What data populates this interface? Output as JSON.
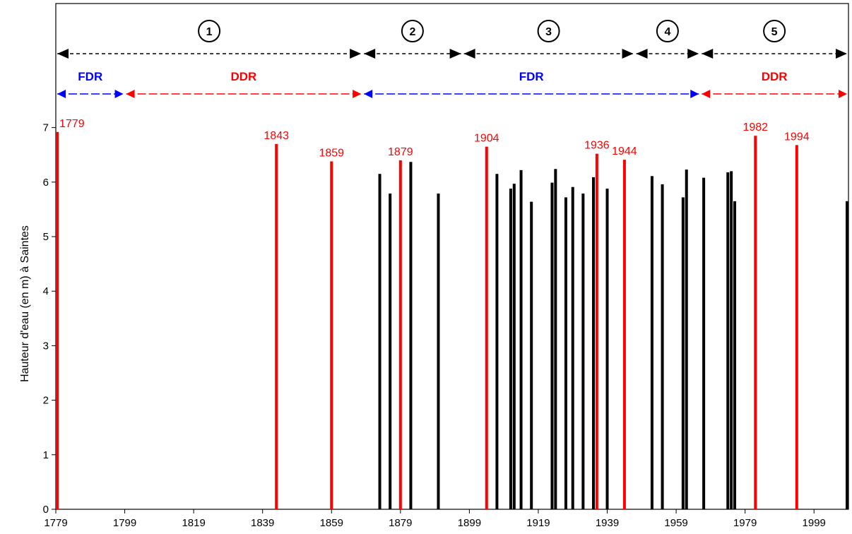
{
  "chart_data": {
    "type": "bar",
    "title": "",
    "xlabel": "",
    "ylabel": "Hauteur d'eau (en m) à Saintes",
    "xlim": [
      1779,
      2009
    ],
    "ylim": [
      0,
      7.6
    ],
    "x_ticks": [
      1779,
      1799,
      1819,
      1839,
      1859,
      1879,
      1899,
      1919,
      1939,
      1959,
      1979,
      1999
    ],
    "y_ticks": [
      0,
      1,
      2,
      3,
      4,
      5,
      6,
      7
    ],
    "grid": false,
    "series": [
      {
        "color": "#ff0000",
        "points": [
          {
            "x": 1779,
            "y": 6.92,
            "label": "1779"
          },
          {
            "x": 1843,
            "y": 6.7,
            "label": "1843"
          },
          {
            "x": 1859,
            "y": 6.38,
            "label": "1859"
          },
          {
            "x": 1879,
            "y": 6.4,
            "label": "1879"
          },
          {
            "x": 1904,
            "y": 6.65,
            "label": "1904"
          },
          {
            "x": 1936,
            "y": 6.52,
            "label": "1936"
          },
          {
            "x": 1944,
            "y": 6.41,
            "label": "1944"
          },
          {
            "x": 1982,
            "y": 6.85,
            "label": "1982"
          },
          {
            "x": 1994,
            "y": 6.68,
            "label": "1994"
          }
        ]
      },
      {
        "color": "#000000",
        "points": [
          {
            "x": 1873,
            "y": 6.15
          },
          {
            "x": 1876,
            "y": 5.79
          },
          {
            "x": 1882,
            "y": 6.37
          },
          {
            "x": 1890,
            "y": 5.79
          },
          {
            "x": 1907,
            "y": 6.15
          },
          {
            "x": 1911,
            "y": 5.88
          },
          {
            "x": 1912,
            "y": 5.97
          },
          {
            "x": 1914,
            "y": 6.22
          },
          {
            "x": 1917,
            "y": 5.64
          },
          {
            "x": 1923,
            "y": 5.99
          },
          {
            "x": 1924,
            "y": 6.24
          },
          {
            "x": 1927,
            "y": 5.72
          },
          {
            "x": 1929,
            "y": 5.91
          },
          {
            "x": 1932,
            "y": 5.79
          },
          {
            "x": 1935,
            "y": 6.09
          },
          {
            "x": 1939,
            "y": 5.88
          },
          {
            "x": 1952,
            "y": 6.11
          },
          {
            "x": 1955,
            "y": 5.96
          },
          {
            "x": 1961,
            "y": 5.72
          },
          {
            "x": 1962,
            "y": 6.23
          },
          {
            "x": 1967,
            "y": 6.08
          },
          {
            "x": 1974,
            "y": 6.18
          },
          {
            "x": 1975,
            "y": 6.2
          },
          {
            "x": 1976,
            "y": 5.65
          },
          {
            "x": 2009,
            "y": 5.65
          }
        ]
      }
    ],
    "periods": [
      {
        "label": "1",
        "from": 1779,
        "to": 1868
      },
      {
        "label": "2",
        "from": 1868,
        "to": 1897
      },
      {
        "label": "3",
        "from": 1897,
        "to": 1947
      },
      {
        "label": "4",
        "from": 1947,
        "to": 1966
      },
      {
        "label": "5",
        "from": 1966,
        "to": 2009
      }
    ],
    "regimes": [
      {
        "label": "FDR",
        "from": 1779,
        "to": 1799,
        "color": "#0000ff"
      },
      {
        "label": "DDR",
        "from": 1799,
        "to": 1868,
        "color": "#ff0000"
      },
      {
        "label": "FDR",
        "from": 1868,
        "to": 1966,
        "color": "#0000ff"
      },
      {
        "label": "DDR",
        "from": 1966,
        "to": 2009,
        "color": "#ff0000"
      }
    ]
  }
}
